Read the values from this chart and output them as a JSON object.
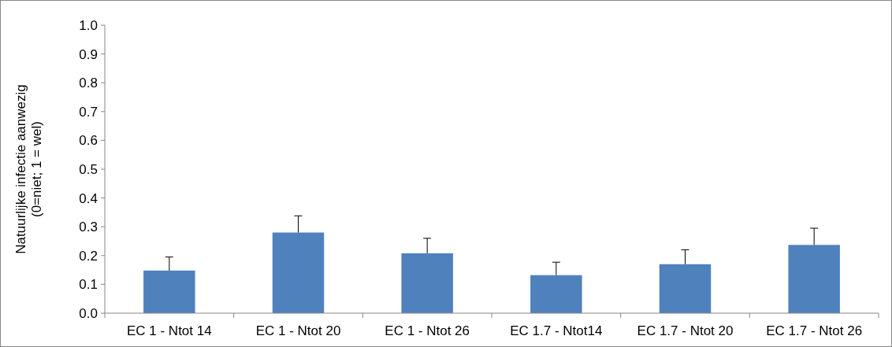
{
  "chart_data": {
    "type": "bar",
    "ylabel": "Natuurlijke infectie aanwezig\n(0=niet; 1 = wel)",
    "categories": [
      "EC 1 - Ntot 14",
      "EC 1 - Ntot 20",
      "EC 1 - Ntot 26",
      "EC 1.7 - Ntot14",
      "EC 1.7 - Ntot 20",
      "EC 1.7 - Ntot 26"
    ],
    "values": [
      0.148,
      0.28,
      0.208,
      0.132,
      0.17,
      0.237
    ],
    "errors": [
      [
        0.148,
        0.195
      ],
      [
        0.28,
        0.338
      ],
      [
        0.208,
        0.26
      ],
      [
        0.132,
        0.177
      ],
      [
        0.17,
        0.22
      ],
      [
        0.237,
        0.295
      ]
    ],
    "color": "#4f81bd",
    "ylim": [
      0,
      1
    ],
    "yticks": [
      {
        "value": 0,
        "label": "0.0"
      },
      {
        "value": 0.1,
        "label": "0.1"
      },
      {
        "value": 0.2,
        "label": "0.2"
      },
      {
        "value": 0.3,
        "label": "0.3"
      },
      {
        "value": 0.4,
        "label": "0.4"
      },
      {
        "value": 0.5,
        "label": "0.5"
      },
      {
        "value": 0.6,
        "label": "0.6"
      },
      {
        "value": 0.7,
        "label": "0.7"
      },
      {
        "value": 0.8,
        "label": "0.8"
      },
      {
        "value": 0.9,
        "label": "0.9"
      },
      {
        "value": 1,
        "label": "1.0"
      }
    ],
    "grid": false
  }
}
